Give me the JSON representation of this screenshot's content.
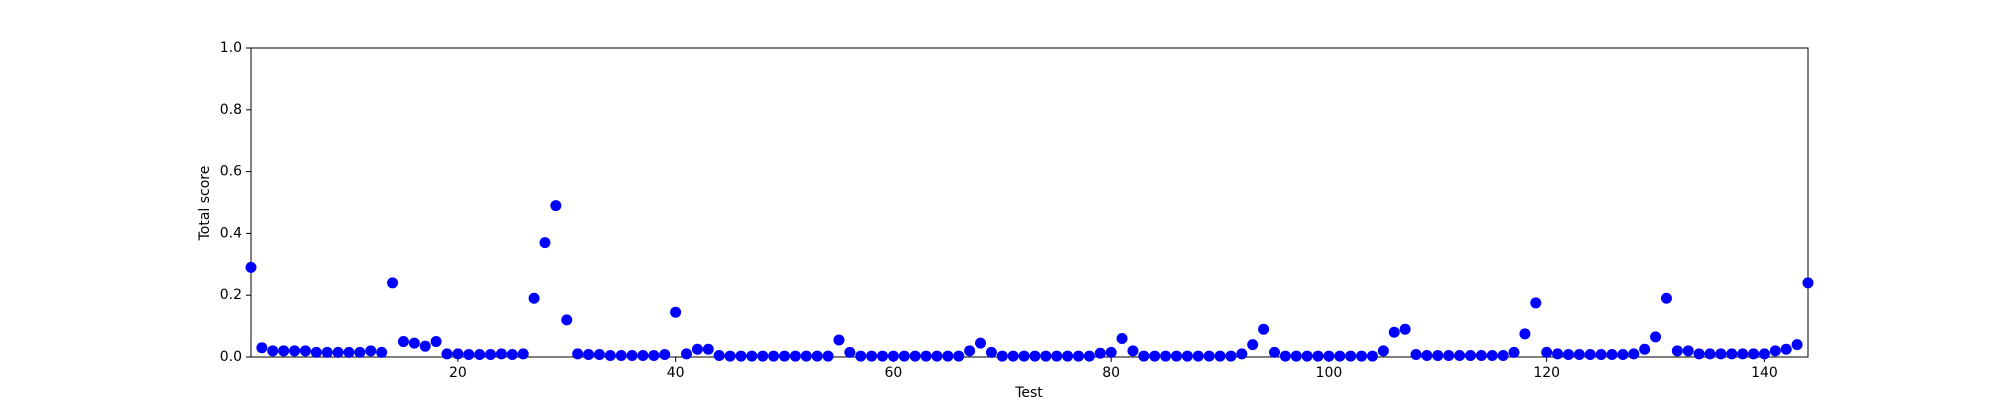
{
  "chart_data": {
    "type": "scatter",
    "x_label": "Test",
    "y_label": "Total score",
    "x": [
      1,
      2,
      3,
      4,
      5,
      6,
      7,
      8,
      9,
      10,
      11,
      12,
      13,
      14,
      15,
      16,
      17,
      18,
      19,
      20,
      21,
      22,
      23,
      24,
      25,
      26,
      27,
      28,
      29,
      30,
      31,
      32,
      33,
      34,
      35,
      36,
      37,
      38,
      39,
      40,
      41,
      42,
      43,
      44,
      45,
      46,
      47,
      48,
      49,
      50,
      51,
      52,
      53,
      54,
      55,
      56,
      57,
      58,
      59,
      60,
      61,
      62,
      63,
      64,
      65,
      66,
      67,
      68,
      69,
      70,
      71,
      72,
      73,
      74,
      75,
      76,
      77,
      78,
      79,
      80,
      81,
      82,
      83,
      84,
      85,
      86,
      87,
      88,
      89,
      90,
      91,
      92,
      93,
      94,
      95,
      96,
      97,
      98,
      99,
      100,
      101,
      102,
      103,
      104,
      105,
      106,
      107,
      108,
      109,
      110,
      111,
      112,
      113,
      114,
      115,
      116,
      117,
      118,
      119,
      120,
      121,
      122,
      123,
      124,
      125,
      126,
      127,
      128,
      129,
      130,
      131,
      132,
      133,
      134,
      135,
      136,
      137,
      138,
      139,
      140,
      141,
      142,
      143,
      144
    ],
    "values": [
      0.29,
      0.03,
      0.02,
      0.02,
      0.02,
      0.02,
      0.015,
      0.015,
      0.015,
      0.015,
      0.015,
      0.02,
      0.015,
      0.24,
      0.05,
      0.045,
      0.035,
      0.05,
      0.01,
      0.01,
      0.008,
      0.008,
      0.008,
      0.01,
      0.008,
      0.01,
      0.19,
      0.37,
      0.49,
      0.12,
      0.01,
      0.008,
      0.008,
      0.005,
      0.005,
      0.005,
      0.005,
      0.005,
      0.008,
      0.145,
      0.01,
      0.025,
      0.025,
      0.005,
      0.003,
      0.003,
      0.003,
      0.003,
      0.003,
      0.003,
      0.003,
      0.003,
      0.003,
      0.003,
      0.055,
      0.015,
      0.003,
      0.003,
      0.003,
      0.003,
      0.003,
      0.003,
      0.003,
      0.003,
      0.003,
      0.003,
      0.02,
      0.045,
      0.015,
      0.003,
      0.003,
      0.003,
      0.003,
      0.003,
      0.003,
      0.003,
      0.003,
      0.003,
      0.012,
      0.015,
      0.06,
      0.02,
      0.003,
      0.003,
      0.003,
      0.003,
      0.003,
      0.003,
      0.003,
      0.003,
      0.003,
      0.01,
      0.04,
      0.09,
      0.015,
      0.003,
      0.003,
      0.003,
      0.003,
      0.003,
      0.003,
      0.003,
      0.003,
      0.003,
      0.02,
      0.08,
      0.09,
      0.008,
      0.005,
      0.005,
      0.005,
      0.005,
      0.005,
      0.005,
      0.005,
      0.005,
      0.015,
      0.075,
      0.175,
      0.015,
      0.01,
      0.008,
      0.008,
      0.008,
      0.008,
      0.008,
      0.008,
      0.01,
      0.025,
      0.065,
      0.19,
      0.02,
      0.02,
      0.01,
      0.01,
      0.01,
      0.01,
      0.01,
      0.01,
      0.01,
      0.02,
      0.025,
      0.04,
      0.24
    ],
    "color": "#0000ff",
    "xlim": [
      1,
      144
    ],
    "xticks": [
      20,
      40,
      60,
      80,
      100,
      120,
      140
    ],
    "ylim": [
      0,
      1
    ],
    "yticks": [
      {
        "value": 0,
        "label": "0.0"
      },
      0.2,
      0.4,
      0.6,
      0.8,
      {
        "value": 1,
        "label": "1.0"
      }
    ]
  }
}
